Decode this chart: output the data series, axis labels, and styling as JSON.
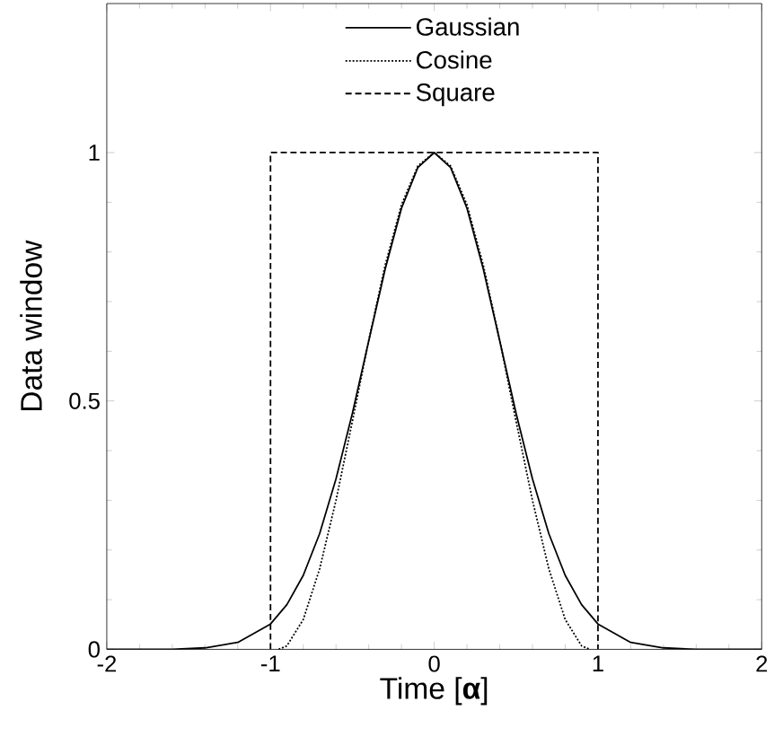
{
  "chart_data": {
    "type": "line",
    "xlabel": "Time [**α**]",
    "ylabel": "Data window",
    "xlim": [
      -2,
      2
    ],
    "ylim": [
      0,
      1.3
    ],
    "xticks": [
      -2,
      -1,
      0,
      1,
      2
    ],
    "yticks": [
      0,
      0.5,
      1
    ],
    "legend": "top",
    "grid": false,
    "marker": "none",
    "series": [
      {
        "name": "Gaussian",
        "color": "#000000",
        "line_style": "solid",
        "x": [
          -2,
          -1.6,
          -1.4,
          -1.2,
          -1,
          -0.9,
          -0.8,
          -0.7,
          -0.6,
          -0.5,
          -0.4,
          -0.3,
          -0.2,
          -0.1,
          0,
          0.1,
          0.2,
          0.3,
          0.4,
          0.5,
          0.6,
          0.7,
          0.8,
          0.9,
          1,
          1.2,
          1.4,
          1.6,
          2
        ],
        "values": [
          0,
          0,
          0.003,
          0.014,
          0.051,
          0.09,
          0.149,
          0.233,
          0.343,
          0.475,
          0.621,
          0.765,
          0.888,
          0.97,
          1,
          0.97,
          0.888,
          0.765,
          0.621,
          0.475,
          0.343,
          0.233,
          0.149,
          0.09,
          0.051,
          0.014,
          0.003,
          0,
          0
        ]
      },
      {
        "name": "Cosine",
        "color": "#000000",
        "line_style": "dotted",
        "x": [
          -0.95,
          -0.9,
          -0.8,
          -0.7,
          -0.6,
          -0.5,
          -0.4,
          -0.3,
          -0.2,
          -0.1,
          0,
          0.1,
          0.2,
          0.3,
          0.4,
          0.5,
          0.6,
          0.7,
          0.8,
          0.9,
          0.95
        ],
        "values": [
          0,
          0.007,
          0.06,
          0.162,
          0.3,
          0.459,
          0.622,
          0.773,
          0.895,
          0.973,
          1,
          0.973,
          0.895,
          0.773,
          0.622,
          0.459,
          0.3,
          0.162,
          0.06,
          0.007,
          0
        ]
      },
      {
        "name": "Square",
        "color": "#000000",
        "line_style": "dashed",
        "x": [
          -1,
          -1,
          1,
          1
        ],
        "values": [
          0,
          1,
          1,
          0
        ]
      }
    ]
  }
}
